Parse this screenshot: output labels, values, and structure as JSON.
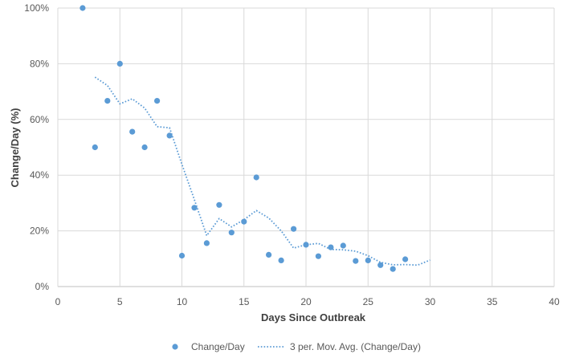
{
  "chart_data": {
    "type": "scatter",
    "xlabel": "Days Since Outbreak",
    "ylabel": "Change/Day (%)",
    "xlim": [
      0,
      40
    ],
    "ylim": [
      0,
      100
    ],
    "x_ticks": [
      "0",
      "5",
      "10",
      "15",
      "20",
      "25",
      "30",
      "35",
      "40"
    ],
    "y_ticks": [
      "0%",
      "20%",
      "40%",
      "60%",
      "80%",
      "100%"
    ],
    "grid": "horizontal",
    "legend_position": "bottom",
    "series": [
      {
        "name": "Change/Day",
        "kind": "markers",
        "color": "#5B9BD5",
        "points": [
          [
            2,
            100
          ],
          [
            3,
            50
          ],
          [
            4,
            66.7
          ],
          [
            5,
            80
          ],
          [
            6,
            55.6
          ],
          [
            7,
            50
          ],
          [
            8,
            66.7
          ],
          [
            9,
            54.2
          ],
          [
            10,
            11.1
          ],
          [
            11,
            28.3
          ],
          [
            12,
            15.6
          ],
          [
            13,
            29.3
          ],
          [
            14,
            19.4
          ],
          [
            15,
            23.3
          ],
          [
            16,
            39.2
          ],
          [
            17,
            11.4
          ],
          [
            18,
            9.4
          ],
          [
            19,
            20.7
          ],
          [
            20,
            15
          ],
          [
            21,
            10.9
          ],
          [
            22,
            14.1
          ],
          [
            23,
            14.7
          ],
          [
            24,
            9.2
          ],
          [
            25,
            9.4
          ],
          [
            26,
            7.7
          ],
          [
            27,
            6.3
          ],
          [
            28,
            9.8
          ]
        ]
      },
      {
        "name": "3 per. Mov. Avg. (Change/Day)",
        "kind": "dotted-line",
        "color": "#5B9BD5",
        "points": [
          [
            3,
            75.2
          ],
          [
            4,
            72.2
          ],
          [
            5,
            65.6
          ],
          [
            6,
            67.4
          ],
          [
            7,
            64.1
          ],
          [
            8,
            57.4
          ],
          [
            9,
            57.0
          ],
          [
            10,
            43.9
          ],
          [
            11,
            31.2
          ],
          [
            12,
            18.3
          ],
          [
            13,
            24.4
          ],
          [
            14,
            21.4
          ],
          [
            15,
            24.0
          ],
          [
            16,
            27.3
          ],
          [
            17,
            24.6
          ],
          [
            18,
            20.0
          ],
          [
            19,
            13.8
          ],
          [
            20,
            15.0
          ],
          [
            21,
            15.5
          ],
          [
            22,
            13.3
          ],
          [
            23,
            13.2
          ],
          [
            24,
            12.7
          ],
          [
            25,
            11.1
          ],
          [
            26,
            8.7
          ],
          [
            27,
            7.8
          ],
          [
            28,
            7.9
          ],
          [
            29,
            7.7
          ],
          [
            30,
            9.5
          ]
        ]
      }
    ]
  }
}
